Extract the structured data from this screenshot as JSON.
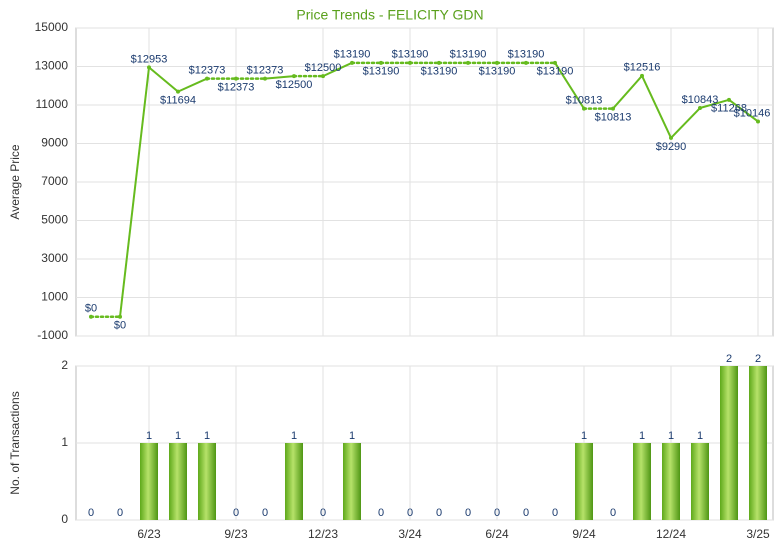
{
  "chart_data": [
    {
      "type": "line",
      "title": "Price Trends - FELICITY GDN",
      "y_label": "Average Price",
      "categories": [
        null,
        null,
        "6/23",
        null,
        null,
        "9/23",
        null,
        null,
        "12/23",
        null,
        null,
        "3/24",
        null,
        null,
        "6/24",
        null,
        null,
        "9/24",
        null,
        null,
        "12/24",
        null,
        null,
        "3/25"
      ],
      "values": [
        0,
        0,
        12953,
        11694,
        12373,
        12373,
        12373,
        12500,
        12500,
        13190,
        13190,
        13190,
        13190,
        13190,
        13190,
        13190,
        13190,
        10813,
        10813,
        12516,
        9290,
        10843,
        11268,
        10146
      ],
      "value_labels": [
        "$0",
        "$0",
        "$12953",
        "$11694",
        "$12373",
        "$12373",
        "$12373",
        "$12500",
        "$12500",
        "$13190",
        "$13190",
        "$13190",
        "$13190",
        "$13190",
        "$13190",
        "$13190",
        "$13190",
        "$10813",
        "$10813",
        "$12516",
        "$9290",
        "$10843",
        "$11268",
        "$10146"
      ],
      "color": "#66bb1e",
      "ylim": [
        -1000,
        15000
      ],
      "yticks": [
        -1000,
        1000,
        3000,
        5000,
        7000,
        9000,
        11000,
        13000,
        15000
      ],
      "grid": true
    },
    {
      "type": "bar",
      "y_label": "No. of Transactions",
      "categories": [
        null,
        null,
        "6/23",
        null,
        null,
        "9/23",
        null,
        null,
        "12/23",
        null,
        null,
        "3/24",
        null,
        null,
        "6/24",
        null,
        null,
        "9/24",
        null,
        null,
        "12/24",
        null,
        null,
        "3/25"
      ],
      "values": [
        0,
        0,
        1,
        1,
        1,
        0,
        0,
        1,
        0,
        1,
        0,
        0,
        0,
        0,
        0,
        0,
        0,
        1,
        0,
        1,
        1,
        1,
        2,
        2
      ],
      "color": "#7cc22a",
      "ylim": [
        0,
        2
      ],
      "yticks": [
        0,
        1,
        2
      ],
      "grid": true
    }
  ]
}
